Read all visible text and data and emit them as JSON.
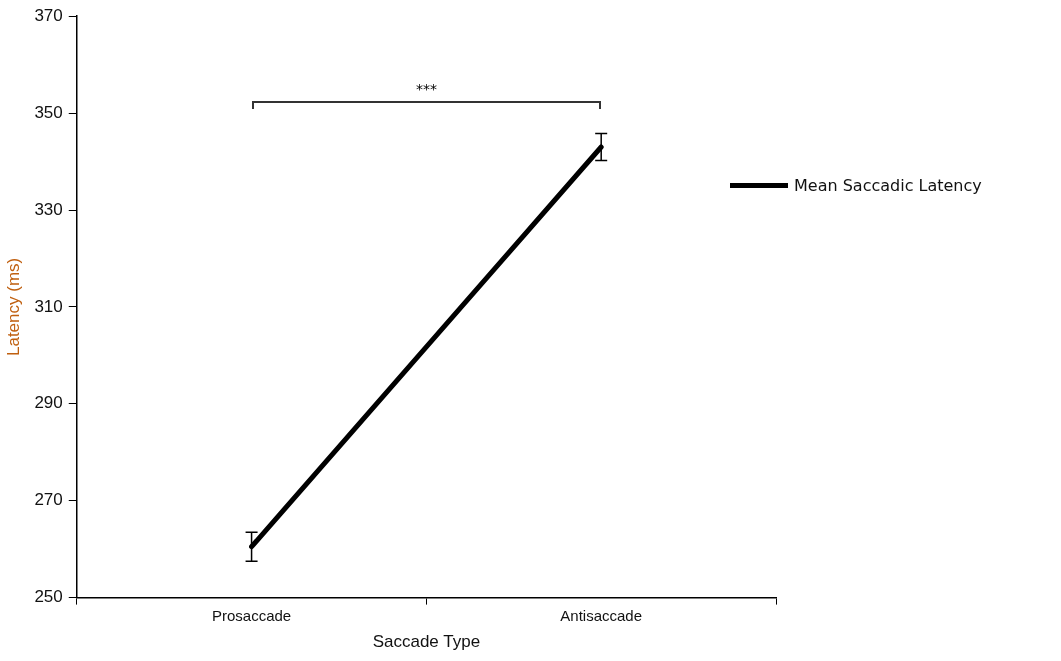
{
  "chart_data": {
    "type": "line",
    "xlabel": "Saccade Type",
    "ylabel": "Latency (ms)",
    "categories": [
      "Prosaccade",
      "Antisaccade"
    ],
    "series": [
      {
        "name": "Mean Saccadic Latency",
        "color": "#000000",
        "values": [
          260.5,
          343
        ],
        "errors": [
          3,
          2.8
        ]
      }
    ],
    "ylim": [
      250,
      370
    ],
    "yticks": [
      250,
      270,
      290,
      310,
      330,
      350,
      370
    ],
    "grid": false,
    "legend": "right",
    "marker": "none",
    "line_style": "solid",
    "annotations": [
      "***"
    ]
  }
}
